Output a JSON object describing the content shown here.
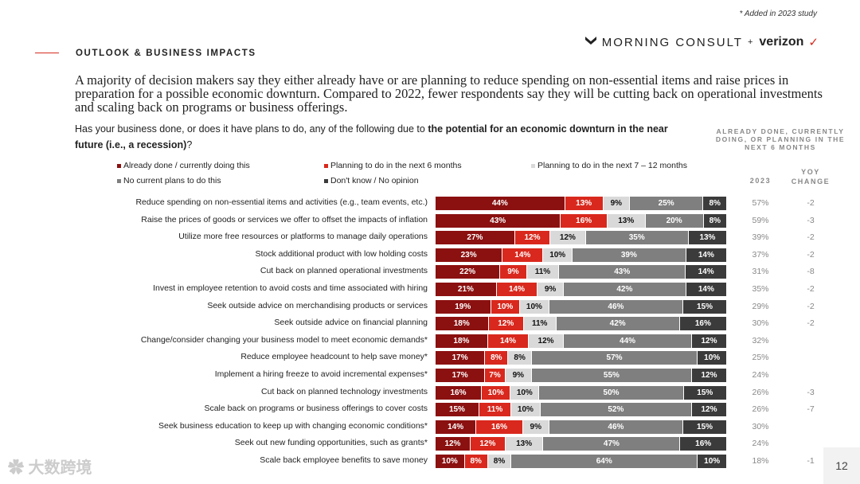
{
  "note": "* Added in 2023 study",
  "logo": {
    "brand1": "MORNING CONSULT",
    "plus": "+",
    "brand2": "verizon"
  },
  "section_title": "OUTLOOK & BUSINESS IMPACTS",
  "headline": "A majority of decision makers say they either already have or are planning to reduce spending on non-essential items and raise prices in preparation for a possible economic downturn. Compared to 2022, fewer respondents say they will be cutting back on operational investments and scaling back on programs or business offerings.",
  "question": {
    "pre": "Has your business done, or does it have plans to do, any of the following due to ",
    "bold": "the potential for an economic downturn in the near future (i.e., a recession)",
    "post": "?"
  },
  "column_header": "ALREADY DONE, CURRENTLY DOING, OR PLANNING IN THE NEXT 6 MONTHS",
  "col_2023": "2023",
  "col_yoy": "YOY CHANGE",
  "page_number": "12",
  "watermark": "大数跨境",
  "colors": [
    "#8b1010",
    "#d9281d",
    "#d9d9d9",
    "#7f7f7f",
    "#3b3b3b"
  ],
  "chart_data": {
    "type": "bar",
    "orientation": "horizontal-stacked-100",
    "series": [
      {
        "name": "Already done / currently doing this"
      },
      {
        "name": "Planning to do in the next 6 months"
      },
      {
        "name": "Planning to do in the next 7 – 12 months"
      },
      {
        "name": "No current plans to do this"
      },
      {
        "name": "Don't know / No opinion"
      }
    ],
    "rows": [
      {
        "label": "Reduce spending on non-essential items and activities (e.g., team events, etc.)",
        "values": [
          44,
          13,
          9,
          25,
          8
        ],
        "total": "57%",
        "yoy": "-2"
      },
      {
        "label": "Raise the prices of goods or services we offer to offset the impacts of inflation",
        "values": [
          43,
          16,
          13,
          20,
          8
        ],
        "total": "59%",
        "yoy": "-3"
      },
      {
        "label": "Utilize more free resources or platforms to manage daily operations",
        "values": [
          27,
          12,
          12,
          35,
          13
        ],
        "total": "39%",
        "yoy": "-2"
      },
      {
        "label": "Stock additional product with low holding costs",
        "values": [
          23,
          14,
          10,
          39,
          14
        ],
        "total": "37%",
        "yoy": "-2"
      },
      {
        "label": "Cut back on planned operational investments",
        "values": [
          22,
          9,
          11,
          43,
          14
        ],
        "total": "31%",
        "yoy": "-8"
      },
      {
        "label": "Invest in employee retention to avoid costs and time associated with hiring",
        "values": [
          21,
          14,
          9,
          42,
          14
        ],
        "total": "35%",
        "yoy": "-2"
      },
      {
        "label": "Seek outside advice on merchandising products or services",
        "values": [
          19,
          10,
          10,
          46,
          15
        ],
        "total": "29%",
        "yoy": "-2"
      },
      {
        "label": "Seek outside advice on financial planning",
        "values": [
          18,
          12,
          11,
          42,
          16
        ],
        "total": "30%",
        "yoy": "-2"
      },
      {
        "label": "Change/consider changing your business model to meet economic demands*",
        "values": [
          18,
          14,
          12,
          44,
          12
        ],
        "total": "32%",
        "yoy": ""
      },
      {
        "label": "Reduce employee headcount to help save money*",
        "values": [
          17,
          8,
          8,
          57,
          10
        ],
        "total": "25%",
        "yoy": ""
      },
      {
        "label": "Implement a hiring freeze to avoid incremental expenses*",
        "values": [
          17,
          7,
          9,
          55,
          12
        ],
        "total": "24%",
        "yoy": ""
      },
      {
        "label": "Cut back on planned technology investments",
        "values": [
          16,
          10,
          10,
          50,
          15
        ],
        "total": "26%",
        "yoy": "-3"
      },
      {
        "label": "Scale back on programs or business offerings to cover costs",
        "values": [
          15,
          11,
          10,
          52,
          12
        ],
        "total": "26%",
        "yoy": "-7"
      },
      {
        "label": "Seek business education to keep up with changing economic conditions*",
        "values": [
          14,
          16,
          9,
          46,
          15
        ],
        "total": "30%",
        "yoy": ""
      },
      {
        "label": "Seek out new funding opportunities, such as grants*",
        "values": [
          12,
          12,
          13,
          47,
          16
        ],
        "total": "24%",
        "yoy": ""
      },
      {
        "label": "Scale back employee benefits to save money",
        "values": [
          10,
          8,
          8,
          64,
          10
        ],
        "total": "18%",
        "yoy": "-1"
      }
    ],
    "unit": "%",
    "legend_position": "top"
  }
}
